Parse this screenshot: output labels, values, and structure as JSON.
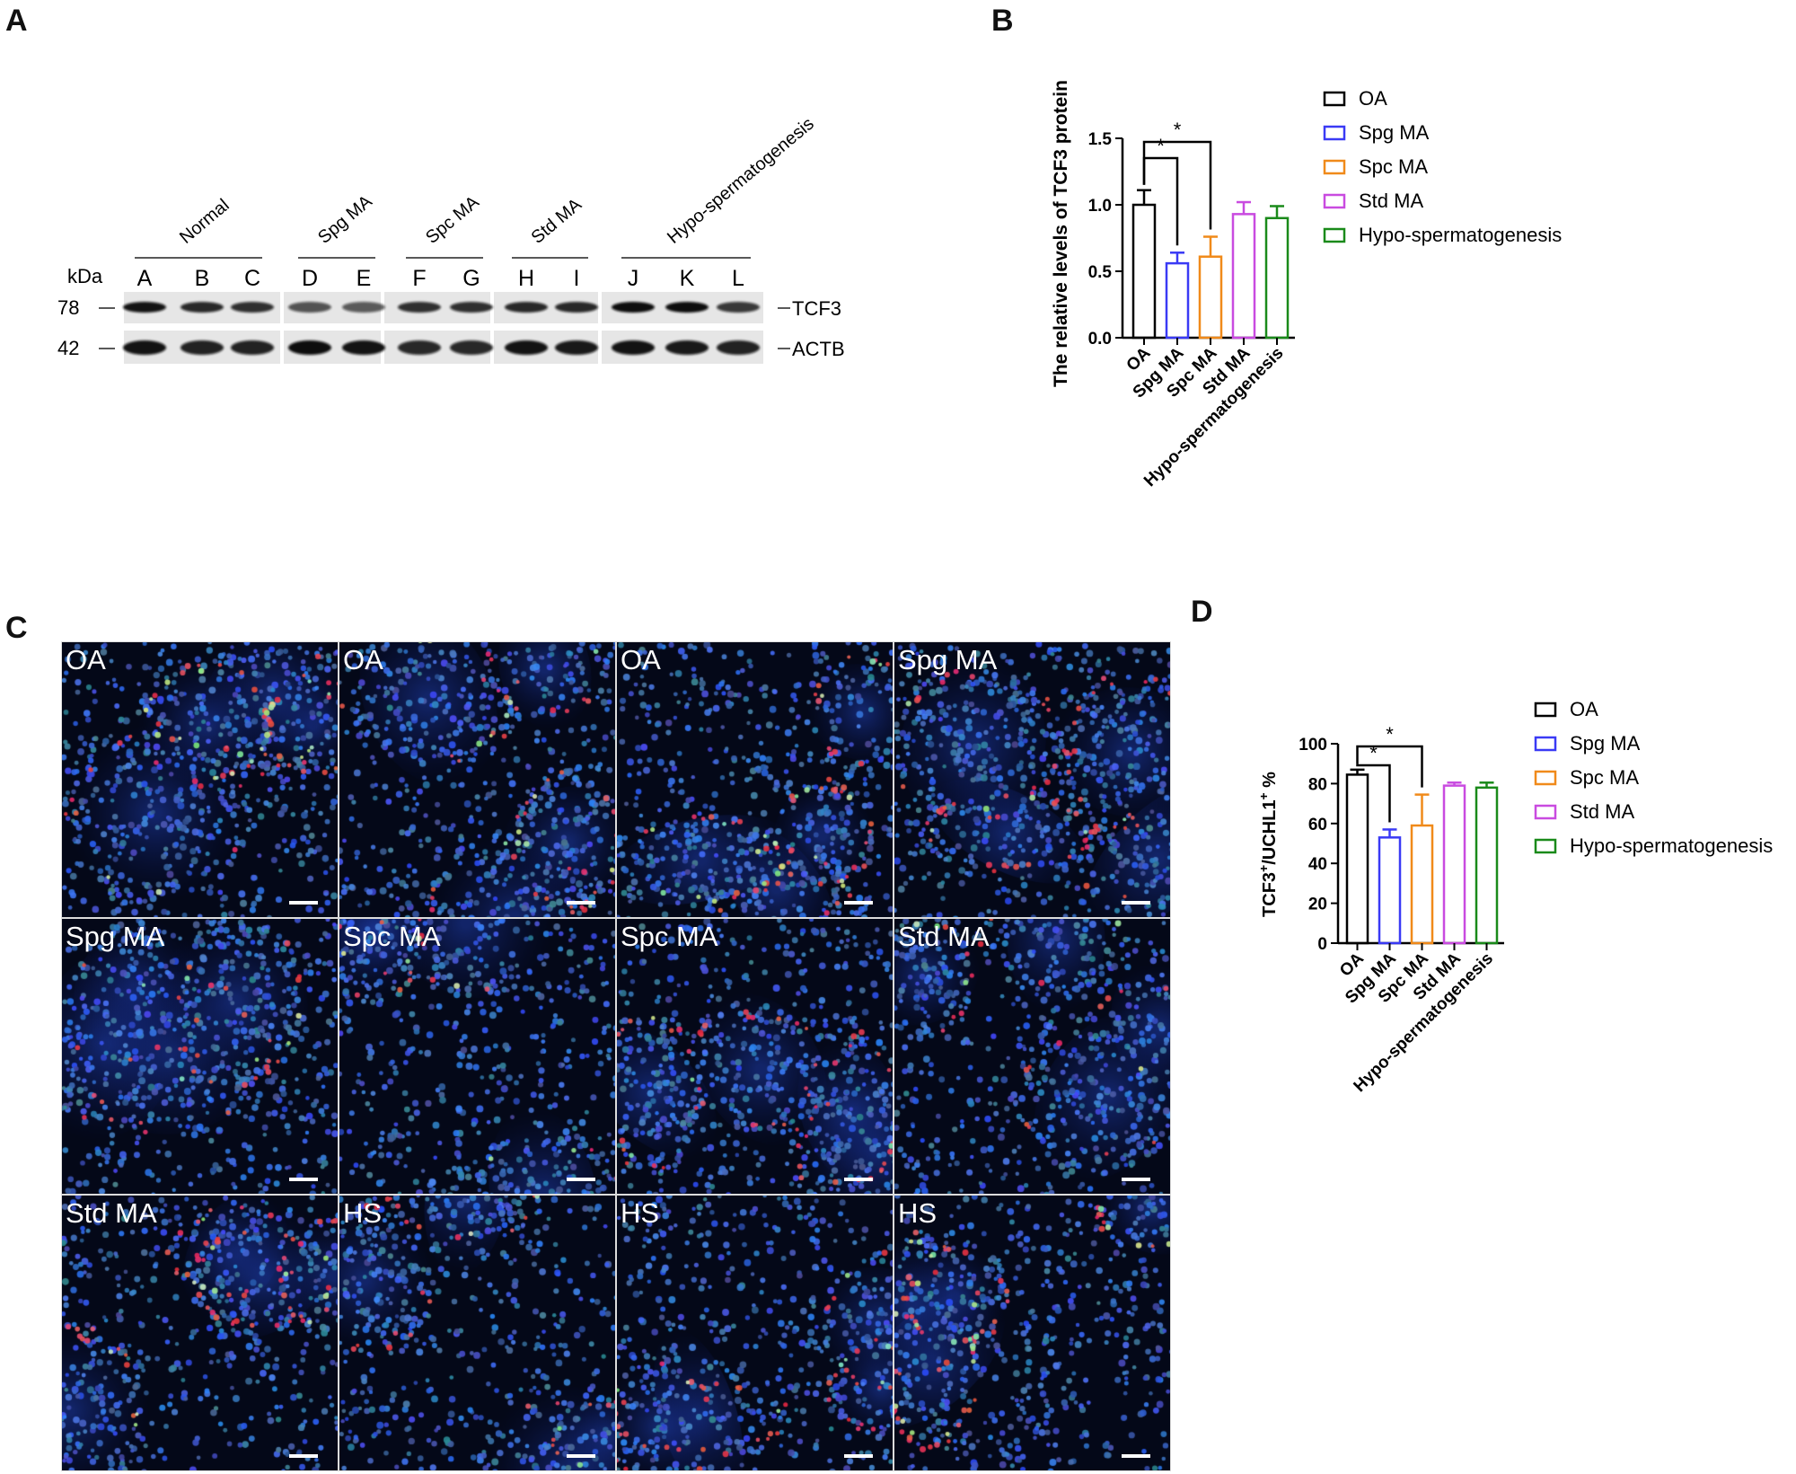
{
  "panels": {
    "A": "A",
    "B": "B",
    "C": "C",
    "D": "D"
  },
  "western": {
    "groups": [
      {
        "name": "Normal",
        "lanes": [
          "A",
          "B",
          "C"
        ]
      },
      {
        "name": "Spg MA",
        "lanes": [
          "D",
          "E"
        ]
      },
      {
        "name": "Spc MA",
        "lanes": [
          "F",
          "G"
        ]
      },
      {
        "name": "Std MA",
        "lanes": [
          "H",
          "I"
        ]
      },
      {
        "name": "Hypo-spermatogenesis",
        "lanes": [
          "J",
          "K",
          "L"
        ]
      }
    ],
    "kda_label": "kDa",
    "markers": [
      {
        "value": "78",
        "protein": "TCF3"
      },
      {
        "value": "42",
        "protein": "ACTB"
      }
    ],
    "tcf3_intensity": [
      0.95,
      0.8,
      0.75,
      0.5,
      0.45,
      0.75,
      0.75,
      0.8,
      0.8,
      1.0,
      1.0,
      0.7
    ],
    "actb_intensity": [
      0.95,
      0.85,
      0.85,
      1.0,
      0.95,
      0.8,
      0.8,
      0.95,
      0.9,
      0.95,
      0.9,
      0.85
    ]
  },
  "legend": {
    "items": [
      {
        "name": "OA",
        "color": "#000000"
      },
      {
        "name": "Spg MA",
        "color": "#3a3af5"
      },
      {
        "name": "Spc MA",
        "color": "#f08a1a"
      },
      {
        "name": "Std MA",
        "color": "#c94be0"
      },
      {
        "name": "Hypo-spermatogenesis",
        "color": "#1a8a1a"
      }
    ]
  },
  "chart_data": [
    {
      "type": "bar",
      "panel": "B",
      "categories": [
        "OA",
        "Spg MA",
        "Spc MA",
        "Std MA",
        "Hypo-spermatogenesis"
      ],
      "values": [
        1.0,
        0.56,
        0.61,
        0.93,
        0.9
      ],
      "errors": [
        0.11,
        0.08,
        0.15,
        0.09,
        0.09
      ],
      "colors": [
        "#000000",
        "#3a3af5",
        "#f08a1a",
        "#c94be0",
        "#1a8a1a"
      ],
      "ylabel": "The relative levels of TCF3 protein",
      "ylim": [
        0,
        1.5
      ],
      "yticks": [
        "0.0",
        "0.5",
        "1.0",
        "1.5"
      ],
      "significance": [
        {
          "from": "OA",
          "to": "Spg MA",
          "label": "*"
        },
        {
          "from": "OA",
          "to": "Spc MA",
          "label": "*"
        }
      ]
    },
    {
      "type": "bar",
      "panel": "D",
      "categories": [
        "OA",
        "Spg MA",
        "Spc MA",
        "Std MA",
        "Hypo-spermatogenesis"
      ],
      "values": [
        84.5,
        53,
        59,
        79,
        78
      ],
      "errors": [
        2.5,
        4,
        15.5,
        1.5,
        2.5
      ],
      "colors": [
        "#000000",
        "#3a3af5",
        "#f08a1a",
        "#c94be0",
        "#1a8a1a"
      ],
      "ylabel_main": "TCF3",
      "ylabel_sup1": "+",
      "ylabel_mid": "/UCHL1",
      "ylabel_sup2": "+",
      "ylabel_end": " %",
      "ylim": [
        0,
        100
      ],
      "yticks": [
        "0",
        "20",
        "40",
        "60",
        "80",
        "100"
      ],
      "significance": [
        {
          "from": "OA",
          "to": "Spg MA",
          "label": "*"
        },
        {
          "from": "OA",
          "to": "Spc MA",
          "label": "*"
        }
      ]
    }
  ],
  "micrographs": [
    {
      "label": "OA",
      "seed": 11,
      "red": 0.25,
      "green": 0.25
    },
    {
      "label": "OA",
      "seed": 12,
      "red": 0.25,
      "green": 0.15
    },
    {
      "label": "OA",
      "seed": 13,
      "red": 0.25,
      "green": 0.2
    },
    {
      "label": "Spg MA",
      "seed": 14,
      "red": 0.35,
      "green": 0.05
    },
    {
      "label": "Spg MA",
      "seed": 21,
      "red": 0.15,
      "green": 0.05
    },
    {
      "label": "Spc MA",
      "seed": 22,
      "red": 0.15,
      "green": 0.1
    },
    {
      "label": "Spc MA",
      "seed": 23,
      "red": 0.3,
      "green": 0.05
    },
    {
      "label": "Std MA",
      "seed": 24,
      "red": 0.15,
      "green": 0.05
    },
    {
      "label": "Std MA",
      "seed": 31,
      "red": 0.35,
      "green": 0.15
    },
    {
      "label": "HS",
      "seed": 32,
      "red": 0.25,
      "green": 0.08
    },
    {
      "label": "HS",
      "seed": 33,
      "red": 0.3,
      "green": 0.08
    },
    {
      "label": "HS",
      "seed": 34,
      "red": 0.3,
      "green": 0.25
    }
  ]
}
